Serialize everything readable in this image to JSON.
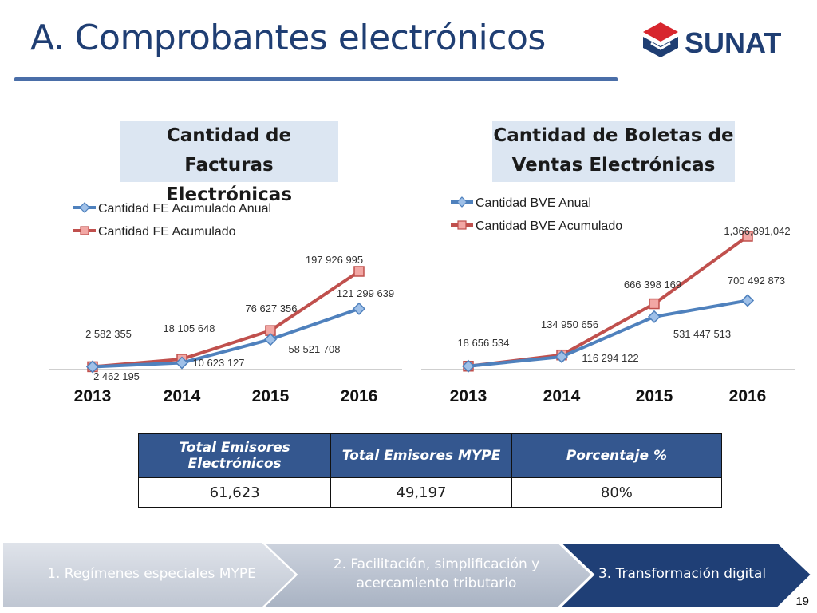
{
  "page": {
    "title": "A. Comprobantes electrónicos",
    "logo_text": "SUNAT",
    "page_number": "19",
    "colors": {
      "title": "#1f3e73",
      "blue_series": "#4f81bd",
      "red_series": "#c0504d",
      "table_header": "#34578f"
    }
  },
  "chart_data": [
    {
      "type": "line",
      "title": "Cantidad de Facturas Electrónicas",
      "title_lines": [
        "Cantidad de Facturas",
        "Electrónicas"
      ],
      "categories": [
        "2013",
        "2014",
        "2015",
        "2016"
      ],
      "legend_placement": "top-left",
      "grid": false,
      "ylim": [
        0,
        200000000
      ],
      "series": [
        {
          "name": "Cantidad FE Acumulado Anual",
          "color": "#4f81bd",
          "marker": "diamond",
          "values": [
            2462195,
            10623127,
            58521708,
            121299639
          ],
          "labels": [
            "2 462 195",
            "10 623 127",
            "58 521 708",
            "121 299 639"
          ]
        },
        {
          "name": "Cantidad FE Acumulado",
          "color": "#c0504d",
          "marker": "square",
          "values": [
            2582355,
            18105648,
            76627356,
            197926995
          ],
          "labels": [
            "2 582 355",
            "18 105 648",
            "76 627 356",
            "197 926 995"
          ]
        }
      ]
    },
    {
      "type": "line",
      "title": "Cantidad de Boletas de Ventas Electrónicas",
      "title_lines": [
        "Cantidad de Boletas de",
        "Ventas Electrónicas"
      ],
      "categories": [
        "2013",
        "2014",
        "2015",
        "2016"
      ],
      "legend_placement": "top-left",
      "grid": false,
      "ylim": [
        0,
        1400000000
      ],
      "series": [
        {
          "name": "Cantidad BVE Anual",
          "color": "#4f81bd",
          "marker": "diamond",
          "values": [
            18656534,
            116294122,
            531447513,
            700492873
          ],
          "labels": [
            "",
            "116 294 122",
            "531 447 513",
            "700 492 873"
          ]
        },
        {
          "name": "Cantidad BVE Acumulado",
          "color": "#c0504d",
          "marker": "square",
          "values": [
            18656534,
            134950656,
            666398169,
            1366891042
          ],
          "labels": [
            "18 656 534",
            "134 950 656",
            "666 398 169",
            "1,366,891,042"
          ]
        }
      ]
    }
  ],
  "table": {
    "headers": [
      "Total Emisores Electrónicos",
      "Total Emisores MYPE",
      "Porcentaje %"
    ],
    "values": [
      "61,623",
      "49,197",
      "80%"
    ]
  },
  "steps": [
    {
      "label": "1. Regímenes especiales MYPE",
      "active": false
    },
    {
      "label": "2. Facilitación, simplificación y acercamiento tributario",
      "active": false
    },
    {
      "label": "3. Transformación digital",
      "active": true
    }
  ]
}
